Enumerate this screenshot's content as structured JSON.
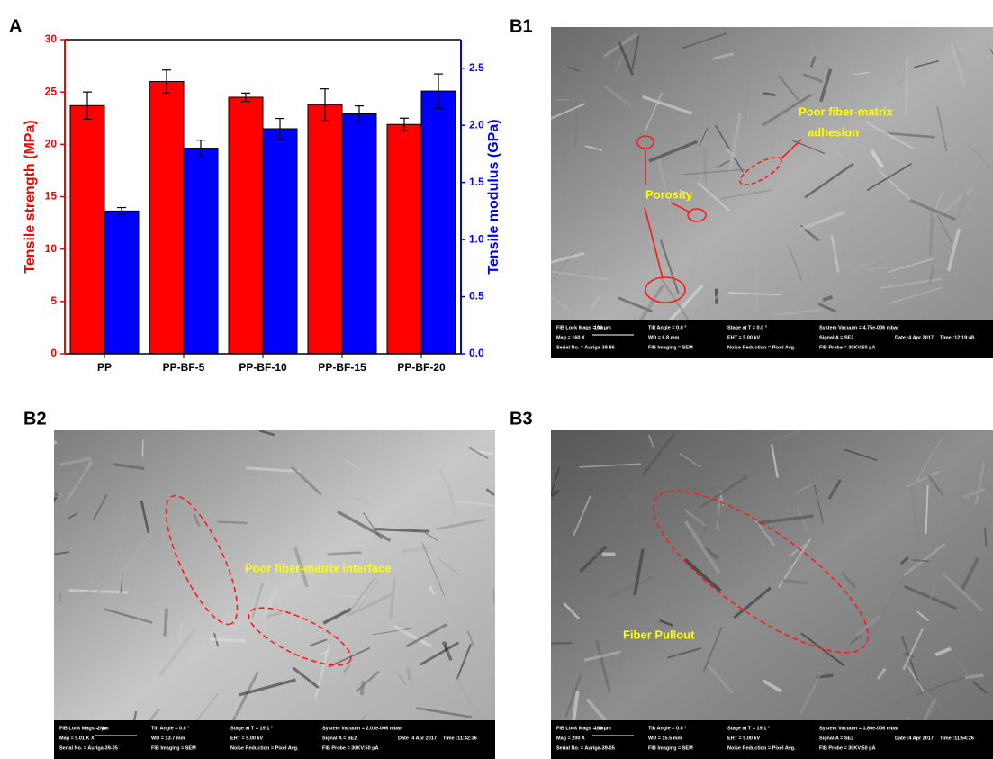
{
  "chart_data": {
    "type": "bar",
    "panel_label": "A",
    "categories": [
      "PP",
      "PP-BF-5",
      "PP-BF-10",
      "PP-BF-15",
      "PP-BF-20"
    ],
    "ylabel": "Tensile strength (MPa)",
    "y2label": "Tensile modulus (GPa)",
    "series": [
      {
        "color": "#ff0000",
        "values": [
          23.7,
          26.0,
          24.5,
          23.8,
          21.9
        ],
        "errors": [
          1.3,
          1.1,
          0.4,
          1.5,
          0.6
        ]
      },
      {
        "color": "#0000ff",
        "axis": "y2",
        "values": [
          1.25,
          1.8,
          1.97,
          2.1,
          2.3
        ],
        "errors": [
          0.03,
          0.07,
          0.09,
          0.07,
          0.15
        ]
      }
    ],
    "ylim": [
      0,
      30
    ],
    "yticks": [
      0,
      5,
      10,
      15,
      20,
      25,
      30
    ],
    "y2lim": [
      0,
      2.75
    ],
    "y2ticks": [
      {
        "value": 0,
        "label": "0.0"
      },
      {
        "value": 0.5,
        "label": "0.5"
      },
      {
        "value": 1,
        "label": "1.0"
      },
      {
        "value": 1.5,
        "label": "1.5"
      },
      {
        "value": 2,
        "label": "2.0"
      },
      {
        "value": 2.5,
        "label": "2.5"
      }
    ]
  },
  "images": [
    {
      "label": "B1",
      "annotations": [
        "Porosity",
        "Poor fiber-matrix",
        "adhesion"
      ],
      "info": [
        "FIB Lock Mags = No",
        "Mag = 160 X",
        "100 µm",
        "Serial No. = Auriga-39-86",
        "Tilt Angle = 0.0 °",
        "WD = 6.8 mm",
        "FIB Imaging = SEM",
        "Stage at T = 0.0 °",
        "EHT = 5.00 kV",
        "Noise Reduction = Pixel Avg.",
        "System Vacuum = 4.75e-006 mbar",
        "Signal A = SE2",
        "FIB Probe = 30KV:50 pA",
        "Date :4 Apr 2017",
        "Time :12:19:48"
      ]
    },
    {
      "label": "B2",
      "annotations": [
        "Poor fiber-matrix interface"
      ],
      "info": [
        "FIB Lock Mags = No",
        "Mag = 5.01 K X",
        "2 µm",
        "Serial No. = Auriga-39-05",
        "Tilt Angle = 0.0 °",
        "WD = 13.7 mm",
        "FIB Imaging = SEM",
        "Stage at T = 19.1 °",
        "EHT = 5.00 kV",
        "Noise Reduction = Pixel Avg.",
        "System Vacuum = 2.01e-006 mbar",
        "Signal A = SE2",
        "FIB Probe = 30KV:50 pA",
        "Date :4 Apr 2017",
        "Time :11:42:36"
      ]
    },
    {
      "label": "B3",
      "annotations": [
        "Fiber Pullout"
      ],
      "info": [
        "FIB Lock Mags = No",
        "Mag = 200 X",
        "100 µm",
        "Serial No. = Auriga-39-05",
        "Tilt Angle = 0.0 °",
        "WD = 15.5 mm",
        "FIB Imaging = SEM",
        "Stage at T = 19.1 °",
        "EHT = 5.00 kV",
        "Noise Reduction = Pixel Avg.",
        "System Vacuum = 1.86e-006 mbar",
        "Signal A = SE2",
        "FIB Probe = 30KV:50 pA",
        "Date :4 Apr 2017",
        "Time :11:54:26"
      ]
    }
  ]
}
